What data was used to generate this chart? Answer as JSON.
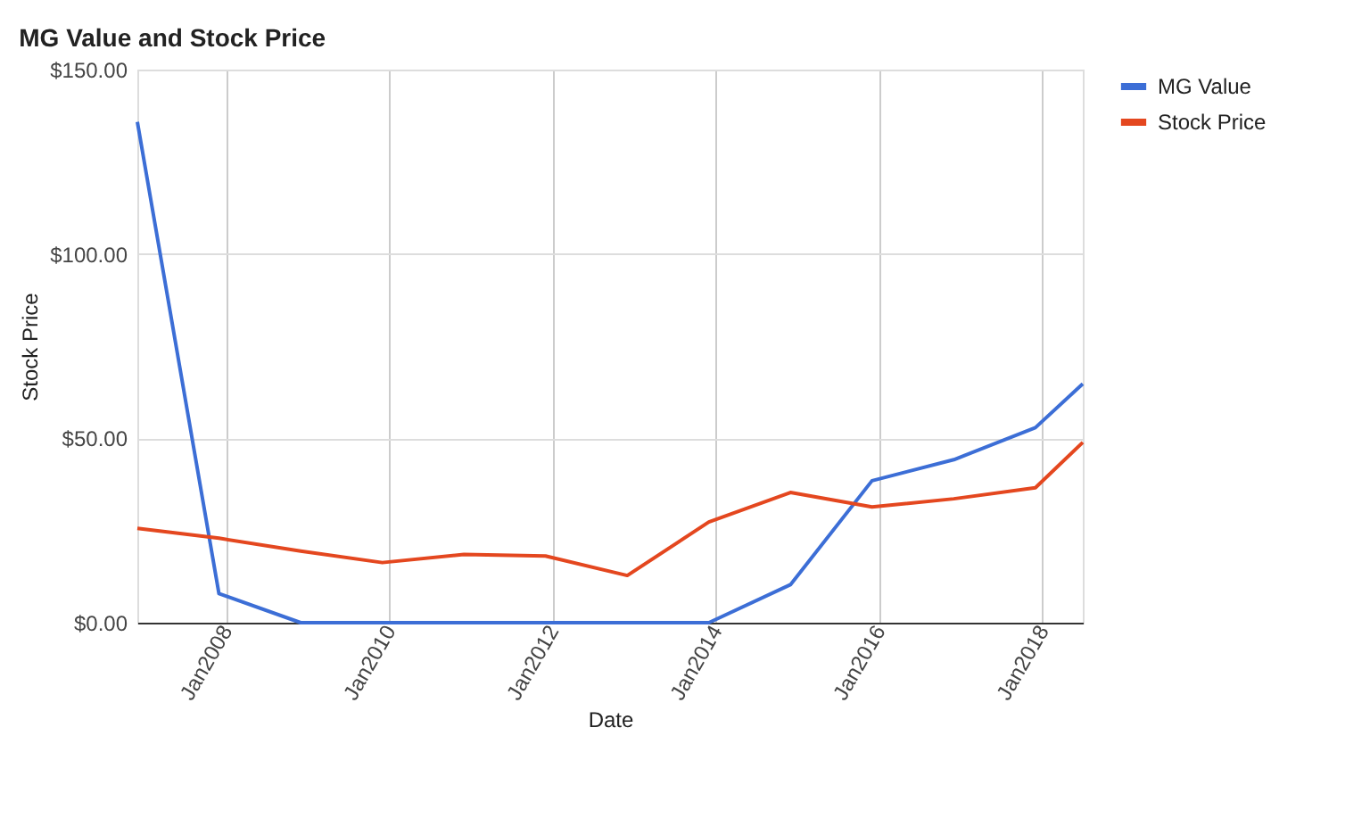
{
  "chart_data": {
    "type": "line",
    "title": "MG Value and Stock Price",
    "xlabel": "Date",
    "ylabel": "Stock Price",
    "x": [
      "2006-12",
      "2007-12",
      "2008-12",
      "2009-12",
      "2010-12",
      "2011-12",
      "2012-12",
      "2013-12",
      "2014-12",
      "2015-12",
      "2016-12",
      "2017-12",
      "2018-07"
    ],
    "series": [
      {
        "name": "MG Value",
        "color": "#3c6ed6",
        "values": [
          135.8,
          7.9,
          0,
          0,
          0,
          0,
          0,
          0,
          10.3,
          38.5,
          44.2,
          52.9,
          64.8
        ]
      },
      {
        "name": "Stock Price",
        "color": "#e4471f",
        "values": [
          25.6,
          22.9,
          19.4,
          16.3,
          18.5,
          18.1,
          12.8,
          27.3,
          35.3,
          31.4,
          33.6,
          36.6,
          48.9
        ]
      }
    ],
    "xlim": [
      "2006-12",
      "2018-07"
    ],
    "xticks": [
      {
        "value": "2008-01",
        "label": "Jan2008"
      },
      {
        "value": "2010-01",
        "label": "Jan2010"
      },
      {
        "value": "2012-01",
        "label": "Jan2012"
      },
      {
        "value": "2014-01",
        "label": "Jan2014"
      },
      {
        "value": "2016-01",
        "label": "Jan2016"
      },
      {
        "value": "2018-01",
        "label": "Jan2018"
      }
    ],
    "ylim": [
      0,
      150
    ],
    "yticks": [
      {
        "value": 0,
        "label": "$0.00"
      },
      {
        "value": 50,
        "label": "$50.00"
      },
      {
        "value": 100,
        "label": "$100.00"
      },
      {
        "value": 150,
        "label": "$150.00"
      }
    ],
    "grid": true,
    "legend": "top right",
    "marker": "none",
    "line_style": "solid"
  }
}
